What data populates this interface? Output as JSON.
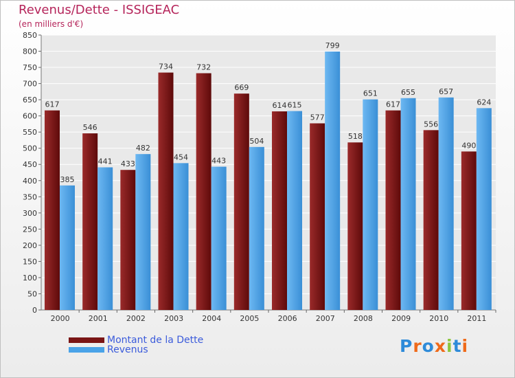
{
  "header": {
    "title": "Revenus/Dette - ISSIGEAC",
    "subtitle": "(en milliers d'€)"
  },
  "legend": {
    "items": [
      {
        "label": "Montant de la Dette",
        "color": "#7a1515"
      },
      {
        "label": "Revenus",
        "color": "#4aa3e8"
      }
    ]
  },
  "logo": {
    "text": "Proxiti",
    "letter_colors": [
      "#2e8bd9",
      "#ef6a1a",
      "#2e8bd9",
      "#ef6a1a",
      "#8dc63f",
      "#2e8bd9",
      "#ef6a1a"
    ]
  },
  "chart_data": {
    "type": "bar",
    "title": "Revenus/Dette - ISSIGEAC",
    "subtitle": "(en milliers d'€)",
    "xlabel": "",
    "ylabel": "",
    "ylim": [
      0,
      850
    ],
    "ytick_step": 50,
    "grid": true,
    "categories": [
      "2000",
      "2001",
      "2002",
      "2003",
      "2004",
      "2005",
      "2006",
      "2007",
      "2008",
      "2009",
      "2010",
      "2011"
    ],
    "series": [
      {
        "name": "Montant de la Dette",
        "color": "#7a1515",
        "values": [
          617,
          546,
          433,
          734,
          732,
          669,
          614,
          577,
          518,
          617,
          556,
          490
        ]
      },
      {
        "name": "Revenus",
        "color": "#4aa3e8",
        "values": [
          385,
          441,
          482,
          454,
          443,
          504,
          615,
          799,
          651,
          655,
          657,
          624
        ]
      }
    ]
  }
}
